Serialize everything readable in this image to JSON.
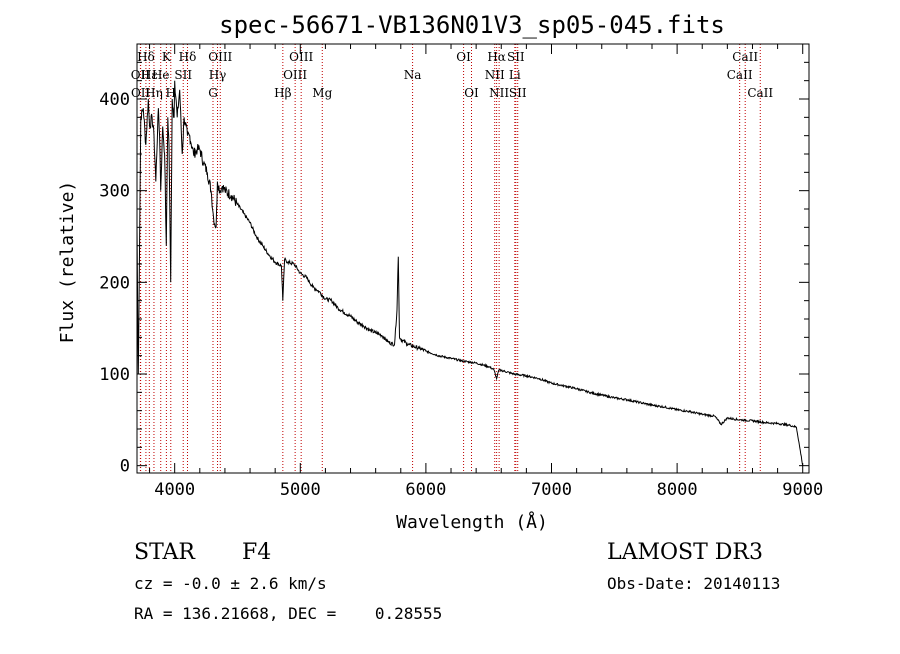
{
  "chart_data": {
    "type": "line",
    "title": "spec-56671-VB136N01V3_sp05-045.fits",
    "xlabel": "Wavelength (Å)",
    "ylabel": "Flux (relative)",
    "xlim": [
      3700,
      9050
    ],
    "ylim": [
      -8,
      460
    ],
    "xticks": [
      4000,
      5000,
      6000,
      7000,
      8000,
      9000
    ],
    "yticks": [
      0,
      100,
      200,
      300,
      400
    ],
    "series": [
      {
        "name": "flux",
        "x": [
          3700,
          3710,
          3730,
          3750,
          3770,
          3790,
          3800,
          3820,
          3835,
          3850,
          3870,
          3880,
          3889,
          3905,
          3920,
          3933,
          3945,
          3955,
          3968,
          3980,
          3995,
          4000,
          4020,
          4040,
          4060,
          4075,
          4102,
          4120,
          4150,
          4180,
          4200,
          4230,
          4260,
          4290,
          4310,
          4330,
          4340,
          4360,
          4380,
          4400,
          4450,
          4500,
          4550,
          4600,
          4650,
          4700,
          4750,
          4800,
          4850,
          4861,
          4875,
          4900,
          4950,
          5000,
          5050,
          5100,
          5150,
          5200,
          5250,
          5300,
          5350,
          5400,
          5450,
          5500,
          5550,
          5600,
          5650,
          5700,
          5750,
          5770,
          5780,
          5790,
          5800,
          5850,
          5900,
          5950,
          6000,
          6100,
          6200,
          6300,
          6400,
          6500,
          6540,
          6563,
          6580,
          6600,
          6700,
          6800,
          6900,
          7000,
          7100,
          7200,
          7300,
          7400,
          7500,
          7600,
          7700,
          7800,
          7900,
          8000,
          8100,
          8200,
          8300,
          8350,
          8400,
          8500,
          8600,
          8700,
          8800,
          8900,
          8950,
          9000
        ],
        "values": [
          260,
          100,
          380,
          390,
          350,
          400,
          370,
          380,
          360,
          310,
          390,
          360,
          300,
          370,
          340,
          240,
          380,
          350,
          200,
          400,
          380,
          420,
          380,
          410,
          340,
          380,
          360,
          360,
          340,
          345,
          345,
          330,
          320,
          300,
          270,
          260,
          310,
          300,
          305,
          300,
          295,
          285,
          275,
          265,
          250,
          240,
          230,
          222,
          218,
          180,
          225,
          222,
          220,
          210,
          205,
          195,
          190,
          182,
          180,
          172,
          167,
          163,
          157,
          153,
          148,
          145,
          142,
          135,
          132,
          170,
          228,
          140,
          138,
          133,
          130,
          128,
          125,
          120,
          117,
          114,
          112,
          108,
          105,
          95,
          104,
          104,
          100,
          98,
          95,
          90,
          87,
          84,
          80,
          77,
          74,
          72,
          69,
          66,
          64,
          61,
          59,
          56,
          54,
          45,
          52,
          50,
          49,
          47,
          46,
          44,
          42,
          0
        ]
      }
    ],
    "lines": [
      {
        "label": "Hδ",
        "wave": 3771,
        "row": 1
      },
      {
        "label": "OII",
        "wave": 3727,
        "row": 2
      },
      {
        "label": "OII",
        "wave": 3729,
        "row": 3
      },
      {
        "label": "Hε",
        "wave": 3798,
        "row": 2
      },
      {
        "label": "Hη",
        "wave": 3835,
        "row": 3
      },
      {
        "label": "He",
        "wave": 3889,
        "row": 2
      },
      {
        "label": "K",
        "wave": 3934,
        "row": 1
      },
      {
        "label": "H",
        "wave": 3969,
        "row": 3
      },
      {
        "label": "SII",
        "wave": 4068,
        "row": 2
      },
      {
        "label": "Hδ",
        "wave": 4102,
        "row": 1
      },
      {
        "label": "G",
        "wave": 4305,
        "row": 3
      },
      {
        "label": "Hγ",
        "wave": 4341,
        "row": 2
      },
      {
        "label": "OIII",
        "wave": 4363,
        "row": 1
      },
      {
        "label": "Hβ",
        "wave": 4861,
        "row": 3
      },
      {
        "label": "OIII",
        "wave": 4959,
        "row": 2
      },
      {
        "label": "OIII",
        "wave": 5007,
        "row": 1
      },
      {
        "label": "Mg",
        "wave": 5175,
        "row": 3
      },
      {
        "label": "Na",
        "wave": 5894,
        "row": 2
      },
      {
        "label": "OI",
        "wave": 6300,
        "row": 1
      },
      {
        "label": "OI",
        "wave": 6363,
        "row": 3
      },
      {
        "label": "NII",
        "wave": 6548,
        "row": 2
      },
      {
        "label": "NII",
        "wave": 6583,
        "row": 3
      },
      {
        "label": "Hα",
        "wave": 6563,
        "row": 1
      },
      {
        "label": "SII",
        "wave": 6716,
        "row": 1
      },
      {
        "label": "SII",
        "wave": 6731,
        "row": 3
      },
      {
        "label": "Li",
        "wave": 6708,
        "row": 2
      },
      {
        "label": "CaII",
        "wave": 8498,
        "row": 2
      },
      {
        "label": "CaII",
        "wave": 8542,
        "row": 1
      },
      {
        "label": "CaII",
        "wave": 8662,
        "row": 3
      }
    ]
  },
  "info": {
    "object_class": "STAR",
    "subclass": "F4",
    "survey": "LAMOST DR3",
    "redshift": "cz = -0.0 ± 2.6 km/s",
    "obs_date": "Obs-Date: 20140113",
    "coords": "RA = 136.21668, DEC =    0.28555"
  },
  "colors": {
    "axis": "#000000",
    "spectrum": "#000000",
    "line_marker": "#c00000"
  }
}
